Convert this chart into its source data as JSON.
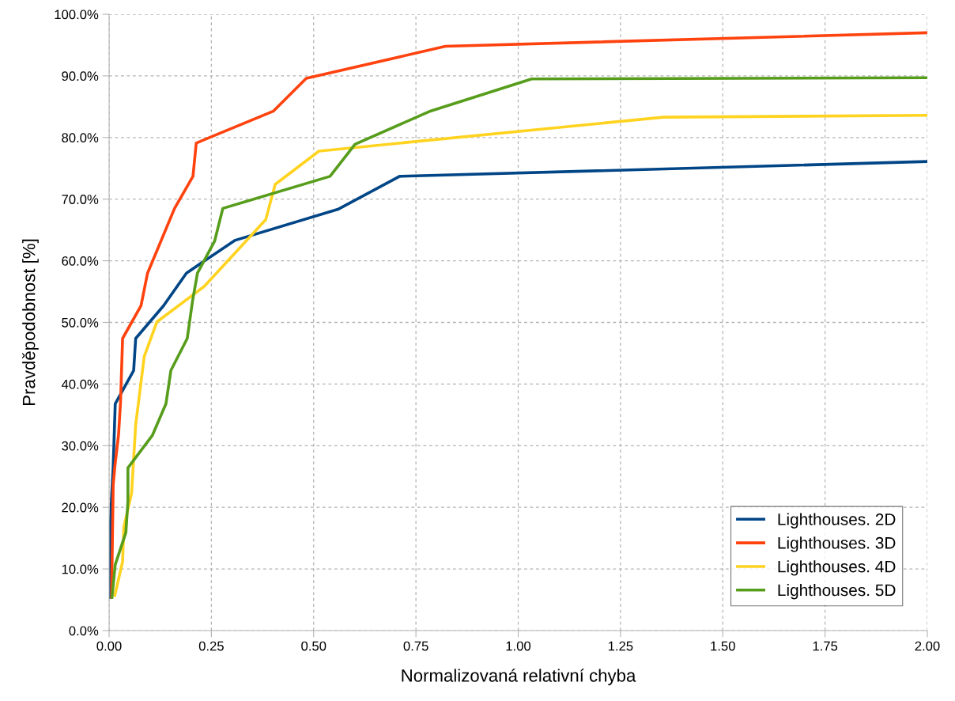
{
  "chart_data": {
    "type": "line",
    "xlabel": "Normalizovaná relativní chyba",
    "ylabel": "Pravděpodobnost [%]",
    "xlim": [
      0,
      2
    ],
    "xticks": [
      {
        "value": 0,
        "label": "0.00"
      },
      {
        "value": 0.25,
        "label": "0.25"
      },
      {
        "value": 0.5,
        "label": "0.50"
      },
      {
        "value": 0.75,
        "label": "0.75"
      },
      {
        "value": 1,
        "label": "1.00"
      },
      {
        "value": 1.25,
        "label": "1.25"
      },
      {
        "value": 1.5,
        "label": "1.50"
      },
      {
        "value": 1.75,
        "label": "1.75"
      },
      {
        "value": 2,
        "label": "2.00"
      }
    ],
    "ylim": [
      0,
      100
    ],
    "yticks": [
      {
        "value": 0,
        "label": "0.0%"
      },
      {
        "value": 10,
        "label": "10.0%"
      },
      {
        "value": 20,
        "label": "20.0%"
      },
      {
        "value": 30,
        "label": "30.0%"
      },
      {
        "value": 40,
        "label": "40.0%"
      },
      {
        "value": 50,
        "label": "50.0%"
      },
      {
        "value": 60,
        "label": "60.0%"
      },
      {
        "value": 70,
        "label": "70.0%"
      },
      {
        "value": 80,
        "label": "80.0%"
      },
      {
        "value": 90,
        "label": "90.0%"
      },
      {
        "value": 100,
        "label": "100.0%"
      }
    ],
    "grid": true,
    "legend": "bottom right",
    "marker": "none",
    "line_style": "solid",
    "series": [
      {
        "name": "Lighthouses. 2D",
        "color": "#004586",
        "x": [
          0.0025,
          0.0025,
          0.006,
          0.01,
          0.015,
          0.06,
          0.065,
          0.133,
          0.189,
          0.307,
          0.561,
          0.71,
          2.0
        ],
        "values": [
          5.4,
          16,
          21.6,
          26.6,
          36.8,
          42.2,
          47.4,
          52.7,
          58,
          63.3,
          68.4,
          73.7,
          76.1
        ]
      },
      {
        "name": "Lighthouses. 3D",
        "color": "#ff420e",
        "x": [
          0.006,
          0.01,
          0.014,
          0.023,
          0.028,
          0.033,
          0.078,
          0.094,
          0.16,
          0.205,
          0.213,
          0.402,
          0.482,
          0.822,
          2.0
        ],
        "values": [
          5.4,
          23.6,
          26.6,
          31.7,
          37.1,
          47.4,
          52.7,
          58,
          68.5,
          73.7,
          79.1,
          84.3,
          89.6,
          94.8,
          97.0
        ]
      },
      {
        "name": "Lighthouses. 4D",
        "color": "#ffd320",
        "x": [
          0.014,
          0.033,
          0.036,
          0.055,
          0.065,
          0.086,
          0.117,
          0.232,
          0.307,
          0.383,
          0.406,
          0.513,
          1.355,
          2.0
        ],
        "values": [
          5.7,
          11.2,
          16.8,
          22.3,
          33.4,
          44.5,
          50.1,
          55.8,
          61.2,
          66.7,
          72.4,
          77.8,
          83.3,
          83.6
        ]
      },
      {
        "name": "Lighthouses. 5D",
        "color": "#579d1c",
        "x": [
          0.007,
          0.015,
          0.041,
          0.046,
          0.046,
          0.106,
          0.139,
          0.151,
          0.191,
          0.204,
          0.216,
          0.258,
          0.278,
          0.54,
          0.601,
          0.782,
          1.033,
          2.0
        ],
        "values": [
          5.4,
          10.7,
          15.9,
          21.0,
          26.4,
          31.7,
          36.8,
          42.2,
          47.4,
          53.5,
          58.0,
          63.2,
          68.5,
          73.7,
          78.9,
          84.2,
          89.5,
          89.7
        ]
      }
    ]
  }
}
